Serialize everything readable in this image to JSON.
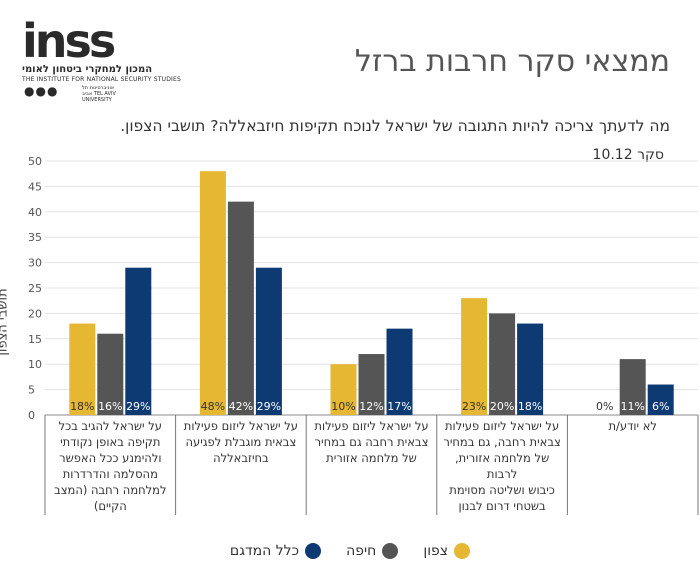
{
  "logo": {
    "word": "inss",
    "hebrew": "המכון למחקרי ביטחון לאומי",
    "english": "THE INSTITUTE FOR NATIONAL SECURITY STUDIES",
    "university": "אוניברסיטת תל אביב TEL AVIV UNIVERSITY"
  },
  "header": {
    "title": "ממצאי סקר חרבות ברזל",
    "question": "מה לדעתך צריכה להיות התגובה של ישראל לנוכח תקיפות חיזבאללה? תושבי הצפון.",
    "survey": "סקר 10.12"
  },
  "colors": {
    "north": "#e5b733",
    "haifa": "#555555",
    "panel": "#0e3a73"
  },
  "chart_data": {
    "type": "bar",
    "ylabel": "תושבי הצפון",
    "ylim": [
      0,
      50
    ],
    "yticks": [
      0,
      5,
      10,
      15,
      20,
      25,
      30,
      35,
      40,
      45,
      50
    ],
    "grid": true,
    "legend_position": "bottom",
    "categories": [
      "על ישראל להגיב בכל תקיפה באופן נקודתי ולהימנע ככל האפשר מהסלמה והדרדרות למלחמה רחבה (המצב הקיים)",
      "על ישראל ליזום פעילות צבאית מוגבלת לפגיעה בחיזבאללה",
      "על ישראל ליזום פעילות צבאית רחבה גם במחיר של מלחמה אזורית",
      "על ישראל ליזום פעילות צבאית רחבה, גם במחיר של מלחמה אזורית, לרבות כיבוש ושליטה מסוימת בשטחי דרום לבנון",
      "לא יודע/ת"
    ],
    "categories_lines": [
      [
        "על ישראל להגיב בכל",
        "תקיפה באופן נקודתי",
        "ולהימנע ככל האפשר",
        "מהסלמה והדרדרות",
        "למלחמה רחבה (המצב",
        "הקיים)"
      ],
      [
        "על ישראל ליזום פעילות",
        "צבאית מוגבלת לפגיעה",
        "בחיזבאללה"
      ],
      [
        "על ישראל ליזום פעילות",
        "צבאית רחבה גם במחיר",
        "של מלחמה אזורית"
      ],
      [
        "על ישראל ליזום פעילות",
        "צבאית רחבה, גם במחיר",
        "של מלחמה אזורית, לרבות",
        "כיבוש ושליטה מסוימת",
        "בשטחי דרום לבנון"
      ],
      [
        "לא יודע/ת"
      ]
    ],
    "series": [
      {
        "name": "צפון",
        "values": [
          18,
          48,
          10,
          23,
          0
        ]
      },
      {
        "name": "חיפה",
        "values": [
          16,
          42,
          12,
          20,
          11
        ]
      },
      {
        "name": "כלל המדגם",
        "values": [
          29,
          29,
          17,
          18,
          6
        ]
      }
    ],
    "data_labels": [
      [
        "18%",
        "48%",
        "10%",
        "23%",
        "0%"
      ],
      [
        "16%",
        "42%",
        "12%",
        "20%",
        "11%"
      ],
      [
        "29%",
        "29%",
        "17%",
        "18%",
        "6%"
      ]
    ]
  }
}
